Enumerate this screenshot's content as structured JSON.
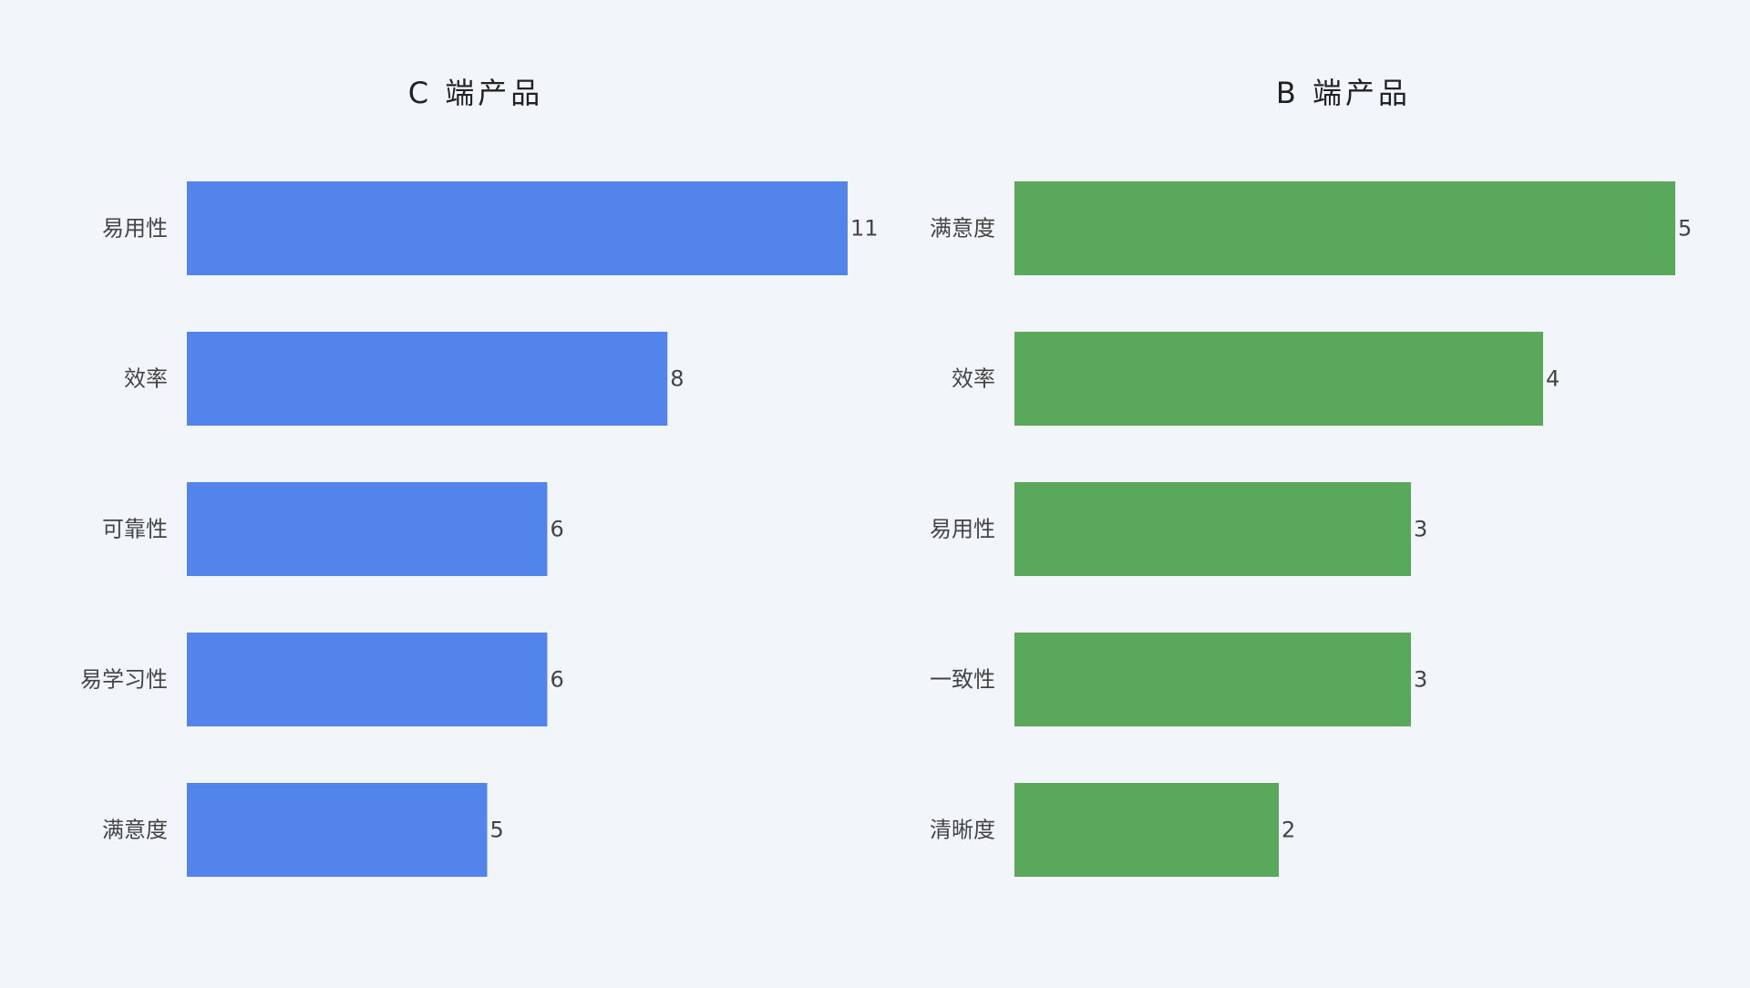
{
  "chart_data": [
    {
      "type": "bar",
      "orientation": "horizontal",
      "title": "C 端产品",
      "categories": [
        "易用性",
        "效率",
        "可靠性",
        "易学习性",
        "满意度"
      ],
      "values": [
        11,
        8,
        6,
        6,
        5
      ],
      "xlim": [
        0,
        11
      ],
      "color": "#5384ec",
      "grid": false,
      "data_labels": true
    },
    {
      "type": "bar",
      "orientation": "horizontal",
      "title": "B 端产品",
      "categories": [
        "满意度",
        "效率",
        "易用性",
        "一致性",
        "清晰度"
      ],
      "values": [
        5,
        4,
        3,
        3,
        2
      ],
      "xlim": [
        0,
        5
      ],
      "color": "#59a85c",
      "grid": false,
      "data_labels": true
    }
  ]
}
